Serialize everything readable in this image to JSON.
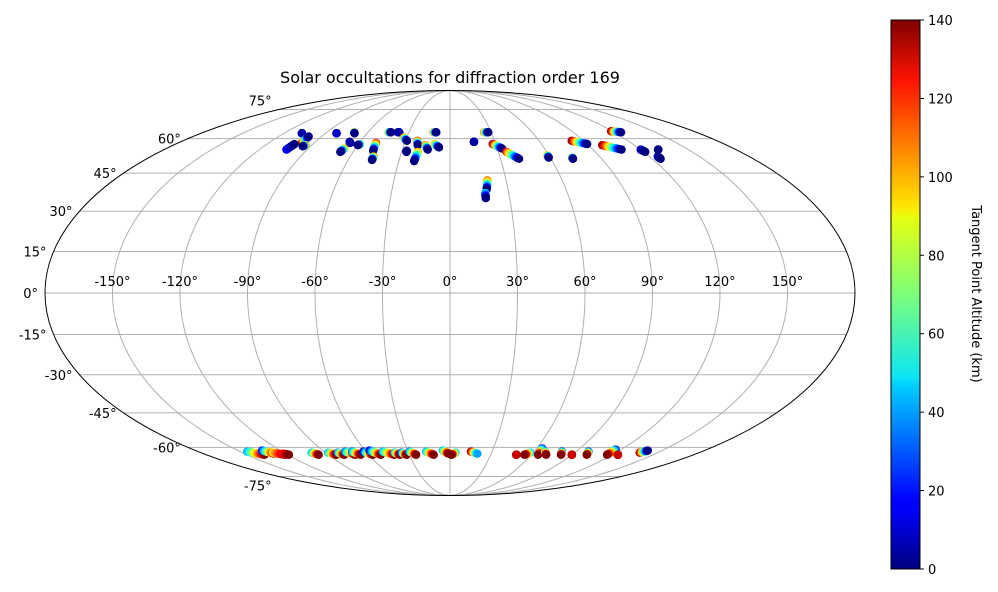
{
  "chart_data": {
    "type": "scatter",
    "projection": "mollweide",
    "title": "Solar occultations for diffraction order 169",
    "xlabel": "",
    "ylabel": "",
    "lon_ticks": [
      -150,
      -120,
      -90,
      -60,
      -30,
      0,
      30,
      60,
      90,
      120,
      150
    ],
    "lon_tick_labels": [
      "-150°",
      "-120°",
      "-90°",
      "-60°",
      "-30°",
      "0°",
      "30°",
      "60°",
      "90°",
      "120°",
      "150°"
    ],
    "lat_ticks": [
      75,
      60,
      45,
      30,
      15,
      0,
      -15,
      -30,
      -45,
      -60,
      -75
    ],
    "lat_tick_labels": [
      "75°",
      "60°",
      "45°",
      "30°",
      "15°",
      "0°",
      "-15°",
      "-30°",
      "-45°",
      "-60°",
      "-75°"
    ],
    "grid": true,
    "colormap": "jet",
    "colorbar": {
      "label": "Tangent Point Altitude (km)",
      "range": [
        0,
        140
      ],
      "ticks": [
        0,
        20,
        40,
        60,
        80,
        100,
        120,
        140
      ],
      "tick_labels": [
        "0",
        "20",
        "40",
        "60",
        "80",
        "100",
        "120",
        "140"
      ],
      "placement": "right"
    },
    "point_size": "small",
    "point_units": "lon_deg, lat_deg, altitude_km",
    "tracks": [
      {
        "start": [
          -107,
          62.5,
          0
        ],
        "end": [
          -107,
          62.5,
          5
        ]
      },
      {
        "start": [
          -98,
          58.0,
          140
        ],
        "end": [
          -99,
          61.0,
          0
        ]
      },
      {
        "start": [
          -103,
          55.0,
          20
        ],
        "end": [
          -102,
          57.5,
          0
        ]
      },
      {
        "start": [
          -94,
          57.0,
          110
        ],
        "end": [
          -95,
          56.5,
          0
        ]
      },
      {
        "start": [
          -82,
          62.5,
          0
        ],
        "end": [
          -82,
          62.5,
          10
        ]
      },
      {
        "start": [
          -70,
          63.0,
          110
        ],
        "end": [
          -69,
          62.5,
          0
        ]
      },
      {
        "start": [
          -67,
          55.5,
          100
        ],
        "end": [
          -68,
          54.0,
          0
        ]
      },
      {
        "start": [
          -67,
          58.5,
          0
        ],
        "end": [
          -66,
          58.0,
          5
        ]
      },
      {
        "start": [
          -59,
          57.5,
          80
        ],
        "end": [
          -60,
          57.0,
          0
        ]
      },
      {
        "start": [
          -49,
          58.0,
          120
        ],
        "end": [
          -48,
          54.5,
          0
        ]
      },
      {
        "start": [
          -46,
          52.0,
          110
        ],
        "end": [
          -46,
          50.5,
          0
        ]
      },
      {
        "start": [
          -45,
          63.0,
          100
        ],
        "end": [
          -43,
          63.0,
          0
        ]
      },
      {
        "start": [
          -38,
          63.0,
          0
        ],
        "end": [
          -37,
          63.0,
          5
        ]
      },
      {
        "start": [
          -32,
          60.5,
          110
        ],
        "end": [
          -29,
          59.0,
          0
        ]
      },
      {
        "start": [
          -27,
          54.5,
          10
        ],
        "end": [
          -27,
          54.0,
          0
        ]
      },
      {
        "start": [
          -22,
          59.0,
          120
        ],
        "end": [
          -21,
          57.0,
          0
        ]
      },
      {
        "start": [
          -20,
          54.0,
          100
        ],
        "end": [
          -21,
          50.0,
          0
        ]
      },
      {
        "start": [
          -16,
          57.0,
          110
        ],
        "end": [
          -14,
          55.0,
          0
        ]
      },
      {
        "start": [
          -12,
          63.0,
          110
        ],
        "end": [
          -10,
          63.0,
          0
        ]
      },
      {
        "start": [
          -10,
          57.5,
          100
        ],
        "end": [
          -7,
          56.0,
          0
        ]
      },
      {
        "start": [
          16,
          58.5,
          0
        ],
        "end": [
          16,
          58.5,
          5
        ]
      },
      {
        "start": [
          25,
          63.0,
          110
        ],
        "end": [
          28,
          63.0,
          0
        ]
      },
      {
        "start": [
          28,
          57.5,
          140
        ],
        "end": [
          33,
          55.5,
          0
        ]
      },
      {
        "start": [
          35,
          54.0,
          120
        ],
        "end": [
          41,
          51.0,
          0
        ]
      },
      {
        "start": [
          20,
          42.0,
          110
        ],
        "end": [
          19,
          38.5,
          0
        ]
      },
      {
        "start": [
          18,
          37.0,
          50
        ],
        "end": [
          18,
          35.0,
          0
        ]
      },
      {
        "start": [
          59,
          52.5,
          100
        ],
        "end": [
          59,
          51.5,
          0
        ]
      },
      {
        "start": [
          73,
          51.5,
          80
        ],
        "end": [
          73,
          51.0,
          0
        ]
      },
      {
        "start": [
          82,
          59.0,
          140
        ],
        "end": [
          90,
          57.5,
          0
        ]
      },
      {
        "start": [
          99,
          57.0,
          140
        ],
        "end": [
          108,
          55.0,
          0
        ]
      },
      {
        "start": [
          119,
          63.5,
          140
        ],
        "end": [
          125,
          63.0,
          0
        ]
      },
      {
        "start": [
          120,
          55.0,
          10
        ],
        "end": [
          121,
          54.0,
          0
        ]
      },
      {
        "start": [
          125,
          52.0,
          10
        ],
        "end": [
          125,
          51.0,
          0
        ]
      },
      {
        "start": [
          131,
          55.0,
          5
        ],
        "end": [
          131,
          55.0,
          0
        ]
      },
      {
        "start": [
          -145,
          -62.0,
          40
        ],
        "end": [
          -137,
          -63.5,
          140
        ]
      },
      {
        "start": [
          -133,
          -61.5,
          20
        ],
        "end": [
          -128,
          -63.0,
          140
        ]
      },
      {
        "start": [
          -128,
          -62.5,
          90
        ],
        "end": [
          -122,
          -63.5,
          140
        ]
      },
      {
        "start": [
          -122,
          -63.0,
          120
        ],
        "end": [
          -119,
          -63.5,
          140
        ]
      },
      {
        "start": [
          -100,
          -62.5,
          40
        ],
        "end": [
          -97,
          -63.5,
          140
        ]
      },
      {
        "start": [
          -88,
          -62.5,
          40
        ],
        "end": [
          -84,
          -63.5,
          140
        ]
      },
      {
        "start": [
          -81,
          -62.5,
          30
        ],
        "end": [
          -78,
          -63.5,
          140
        ]
      },
      {
        "start": [
          -75,
          -62.0,
          30
        ],
        "end": [
          -70,
          -63.5,
          140
        ]
      },
      {
        "start": [
          -70,
          -62.0,
          30
        ],
        "end": [
          -66,
          -63.5,
          140
        ]
      },
      {
        "start": [
          -62,
          -62.0,
          10
        ],
        "end": [
          -57,
          -63.5,
          140
        ]
      },
      {
        "start": [
          -57,
          -61.5,
          10
        ],
        "end": [
          -51,
          -63.5,
          140
        ]
      },
      {
        "start": [
          -48,
          -62.0,
          40
        ],
        "end": [
          -41,
          -63.5,
          140
        ]
      },
      {
        "start": [
          -40,
          -62.5,
          40
        ],
        "end": [
          -37,
          -63.5,
          140
        ]
      },
      {
        "start": [
          -35,
          -62.5,
          20
        ],
        "end": [
          -32,
          -63.5,
          140
        ]
      },
      {
        "start": [
          -29,
          -62.0,
          30
        ],
        "end": [
          -25,
          -63.5,
          140
        ]
      },
      {
        "start": [
          -17,
          -62.0,
          40
        ],
        "end": [
          -12,
          -63.5,
          140
        ]
      },
      {
        "start": [
          -5,
          -61.5,
          40
        ],
        "end": [
          -1,
          -63.0,
          140
        ]
      },
      {
        "start": [
          4,
          -62.5,
          40
        ],
        "end": [
          1,
          -63.5,
          140
        ]
      },
      {
        "start": [
          15,
          -62.0,
          140
        ],
        "end": [
          20,
          -63.0,
          40
        ]
      },
      {
        "start": [
          49,
          -63.5,
          140
        ],
        "end": [
          49,
          -63.5,
          130
        ]
      },
      {
        "start": [
          58,
          -62.5,
          40
        ],
        "end": [
          55,
          -63.5,
          140
        ]
      },
      {
        "start": [
          64,
          -60.5,
          20
        ],
        "end": [
          65,
          -63.5,
          140
        ]
      },
      {
        "start": [
          68,
          -62.0,
          40
        ],
        "end": [
          71,
          -63.5,
          140
        ]
      },
      {
        "start": [
          80,
          -62.0,
          20
        ],
        "end": [
          82,
          -63.5,
          140
        ]
      },
      {
        "start": [
          90,
          -63.5,
          140
        ],
        "end": [
          90,
          -63.5,
          130
        ]
      },
      {
        "start": [
          99,
          -62.0,
          20
        ],
        "end": [
          101,
          -63.5,
          140
        ]
      },
      {
        "start": [
          116,
          -61.0,
          20
        ],
        "end": [
          116,
          -63.5,
          140
        ]
      },
      {
        "start": [
          124,
          -63.5,
          140
        ],
        "end": [
          124,
          -63.5,
          130
        ]
      },
      {
        "start": [
          137,
          -62.5,
          140
        ],
        "end": [
          140,
          -61.5,
          0
        ]
      }
    ]
  }
}
